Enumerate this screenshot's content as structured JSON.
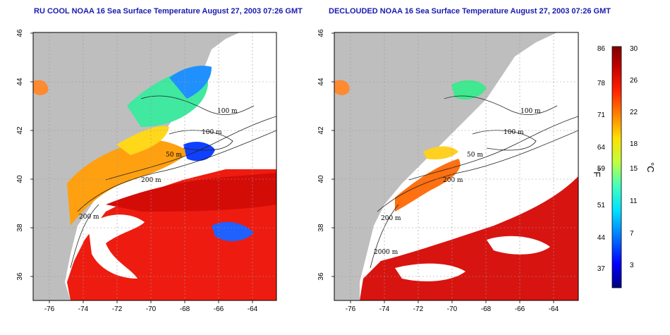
{
  "panels": [
    {
      "id": "left",
      "title": "RU COOL NOAA 16 Sea Surface Temperature August 27, 2003 07:26 GMT"
    },
    {
      "id": "right",
      "title": "DECLOUDED NOAA 16 Sea Surface Temperature August 27, 2003 07:26 GMT"
    }
  ],
  "axes": {
    "x_ticks": [
      "-76",
      "-74",
      "-72",
      "-70",
      "-68",
      "-66",
      "-64"
    ],
    "y_ticks": [
      "46",
      "44",
      "42",
      "40",
      "38",
      "36"
    ]
  },
  "contour_labels": [
    "100 m",
    "100 m",
    "50 m",
    "200 m",
    "200 m"
  ],
  "contour_labels_right": [
    "100 m",
    "100 m",
    "50 m",
    "200 m",
    "200 m",
    "2000 m"
  ],
  "colorbar": {
    "fahrenheit_label": "°F",
    "celsius_label": "°C",
    "fahrenheit_ticks": [
      "86",
      "78",
      "71",
      "64",
      "59",
      "51",
      "44",
      "37"
    ],
    "celsius_ticks": [
      "30",
      "26",
      "22",
      "18",
      "15",
      "11",
      "7",
      "3"
    ],
    "colors": [
      "#000080",
      "#0000ff",
      "#0080ff",
      "#00e0ff",
      "#40ffc0",
      "#c0ff40",
      "#ffe000",
      "#ff8000",
      "#ff2000",
      "#c00000",
      "#800000"
    ]
  }
}
